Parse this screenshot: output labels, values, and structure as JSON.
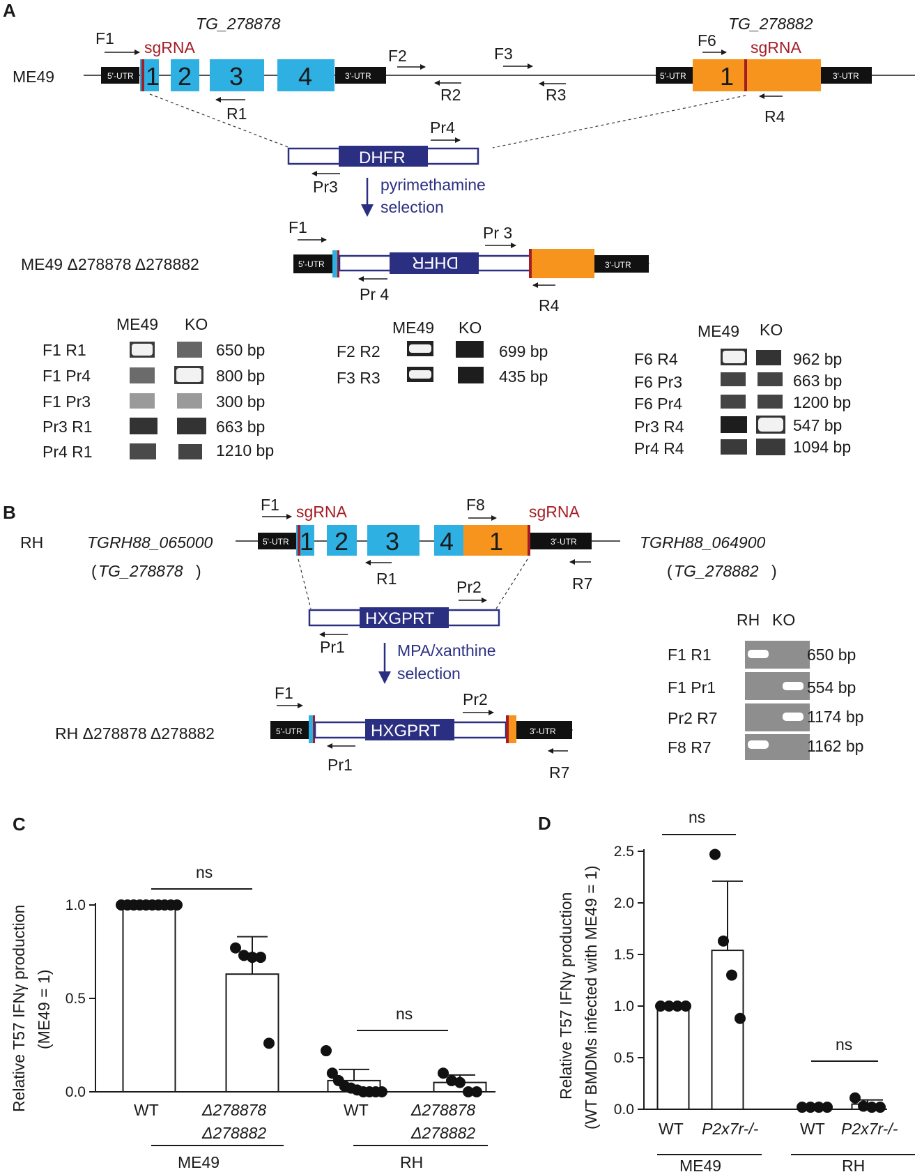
{
  "colors": {
    "exon_blue": "#2fb0e3",
    "exon_orange": "#f7941d",
    "navy": "#2b2f82",
    "red": "#a51d24",
    "utr": "#111111"
  },
  "panelA": {
    "letter": "A",
    "gene1": "TG_278878",
    "gene2": "TG_278882",
    "strain": "ME49",
    "utr5": "5'-UTR",
    "utr3": "3'-UTR",
    "sgRNA": "sgRNA",
    "exons1": [
      "1",
      "2",
      "3",
      "4"
    ],
    "exon2": "1",
    "primers": {
      "F1": "F1",
      "R1": "R1",
      "F2": "F2",
      "R2": "R2",
      "F3": "F3",
      "R3": "R3",
      "F6": "F6",
      "R4": "R4",
      "Pr3": "Pr3",
      "Pr4": "Pr4"
    },
    "cassette": "DHFR",
    "selection": [
      "pyrimethamine",
      "selection"
    ],
    "ko_label": "ME49  Δ278878 Δ278882",
    "ko_primers": {
      "F1": "F1",
      "Pr3": "Pr 3",
      "Pr4": "Pr 4",
      "R4": "R4"
    },
    "gel_headers": [
      "ME49",
      "KO"
    ],
    "gel1": [
      {
        "pair": "F1 R1",
        "size": "650 bp"
      },
      {
        "pair": "F1 Pr4",
        "size": "800 bp"
      },
      {
        "pair": "F1 Pr3",
        "size": "300 bp"
      },
      {
        "pair": "Pr3 R1",
        "size": "663 bp"
      },
      {
        "pair": "Pr4 R1",
        "size": "1210 bp"
      }
    ],
    "gel2": [
      {
        "pair": "F2 R2",
        "size": "699 bp"
      },
      {
        "pair": "F3 R3",
        "size": "435 bp"
      }
    ],
    "gel3": [
      {
        "pair": "F6 R4",
        "size": "962 bp"
      },
      {
        "pair": "F6 Pr3",
        "size": "663 bp"
      },
      {
        "pair": "F6 Pr4",
        "size": "1200 bp"
      },
      {
        "pair": "Pr3 R4",
        "size": "547 bp"
      },
      {
        "pair": "Pr4 R4",
        "size": "1094 bp"
      }
    ]
  },
  "panelB": {
    "letter": "B",
    "strain": "RH",
    "gene1": "TGRH88_065000",
    "gene1_alias": "TG_278878",
    "gene2": "TGRH88_064900",
    "gene2_alias": "TG_278882",
    "utr5": "5'-UTR",
    "utr3": "3'-UTR",
    "sgRNA": "sgRNA",
    "exons1": [
      "1",
      "2",
      "3",
      "4"
    ],
    "exon2": "1",
    "primers": {
      "F1": "F1",
      "F8": "F8",
      "R1": "R1",
      "R7": "R7",
      "Pr1": "Pr1",
      "Pr2": "Pr2"
    },
    "cassette": "HXGPRT",
    "selection": [
      "MPA/xanthine",
      "selection"
    ],
    "ko_label": "RH Δ278878 Δ278882",
    "gel_headers": [
      "RH",
      "KO"
    ],
    "gel": [
      {
        "pair": "F1 R1",
        "size": "650 bp"
      },
      {
        "pair": "F1 Pr1",
        "size": "554 bp"
      },
      {
        "pair": "Pr2 R7",
        "size": "1174 bp"
      },
      {
        "pair": "F8 R7",
        "size": "1162 bp"
      }
    ]
  },
  "panelC": {
    "letter": "C",
    "ylabel": [
      "Relative T57 IFNγ production",
      "(ME49 = 1)"
    ],
    "ns": "ns",
    "groups": [
      "ME49",
      "RH"
    ],
    "ko_lines": [
      "Δ278878",
      "Δ278882"
    ]
  },
  "panelD": {
    "letter": "D",
    "ylabel": [
      "Relative T57 IFNγ production",
      "(WT BMDMs infected with ME49 = 1)"
    ],
    "ns": "ns",
    "groups": [
      "ME49",
      "RH"
    ],
    "ko": "P2x7r-/-"
  },
  "chart_data": [
    {
      "type": "bar",
      "categories": [
        "WT",
        "Δ278878 Δ278882",
        "WT",
        "Δ278878 Δ278882"
      ],
      "group_labels": [
        "ME49",
        "ME49",
        "RH",
        "RH"
      ],
      "values": [
        1.0,
        0.63,
        0.06,
        0.05
      ],
      "error": [
        0.0,
        0.2,
        0.06,
        0.04
      ],
      "points": [
        [
          1,
          1,
          1,
          1,
          1,
          1,
          1,
          1,
          1,
          1
        ],
        [
          0.77,
          0.73,
          0.72,
          0.72,
          0.26
        ],
        [
          0.22,
          0.1,
          0.06,
          0.03,
          0.02,
          0.01,
          0.0,
          0.0,
          0.0,
          0.0
        ],
        [
          0.1,
          0.06,
          0.05,
          0.0,
          0.0
        ]
      ],
      "ylabel": "Relative T57 IFNγ production (ME49 = 1)",
      "yticks": [
        "0.0",
        "0.5",
        "1.0"
      ],
      "ylim": [
        0,
        1.15
      ],
      "annotations": [
        "ns",
        "ns"
      ]
    },
    {
      "type": "bar",
      "categories": [
        "WT",
        "P2x7r-/-",
        "WT",
        "P2x7r-/-"
      ],
      "group_labels": [
        "ME49",
        "ME49",
        "RH",
        "RH"
      ],
      "values": [
        1.0,
        1.54,
        0.02,
        0.05
      ],
      "error": [
        0.0,
        0.67,
        0.0,
        0.04
      ],
      "points": [
        [
          1,
          1,
          1,
          1
        ],
        [
          2.47,
          1.63,
          1.3,
          0.88
        ],
        [
          0.02,
          0.02,
          0.02,
          0.02
        ],
        [
          0.11,
          0.03,
          0.02,
          0.02
        ]
      ],
      "ylabel": "Relative T57 IFNγ production (WT BMDMs infected with ME49 = 1)",
      "yticks": [
        "0.0",
        "0.5",
        "1.0",
        "1.5",
        "2.0",
        "2.5"
      ],
      "ylim": [
        0,
        2.6
      ],
      "annotations": [
        "ns",
        "ns"
      ]
    }
  ]
}
